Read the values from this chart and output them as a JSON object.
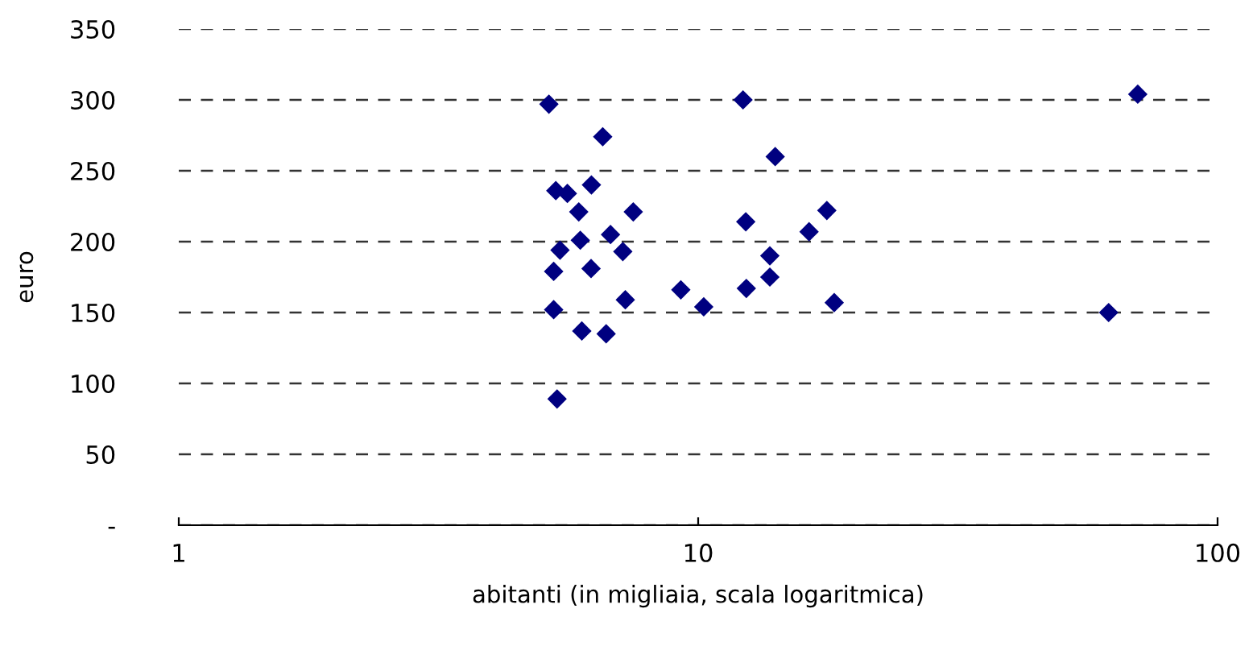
{
  "chart_data": {
    "type": "scatter",
    "xlabel": "abitanti (in migliaia, scala logaritmica)",
    "ylabel": "euro",
    "log": "x",
    "xlim": [
      1,
      100
    ],
    "xticks": [
      1,
      10,
      100
    ],
    "ylim": [
      0,
      350
    ],
    "yticks": [
      {
        "value": 0,
        "label": "-"
      },
      50,
      100,
      150,
      200,
      250,
      300,
      350
    ],
    "grid": "y",
    "marker": "diamond",
    "legend": false,
    "series": [
      {
        "color": "#000080",
        "x": [
          5.16,
          6.55,
          5.32,
          5.6,
          6.23,
          5.89,
          7.5,
          5.93,
          6.78,
          5.42,
          7.16,
          5.27,
          6.22,
          5.27,
          7.24,
          5.97,
          6.65,
          5.35,
          9.26,
          10.25,
          12.2,
          14.07,
          12.35,
          13.74,
          13.74,
          12.38,
          16.35,
          17.69,
          18.28,
          61.7,
          70.2
        ],
        "values": [
          297,
          274,
          236,
          234,
          240,
          221,
          221,
          201,
          205,
          194,
          193,
          179,
          181,
          152,
          159,
          137,
          135,
          89,
          166,
          154,
          300,
          260,
          214,
          190,
          175,
          167,
          207,
          222,
          157,
          150,
          304
        ]
      }
    ]
  }
}
